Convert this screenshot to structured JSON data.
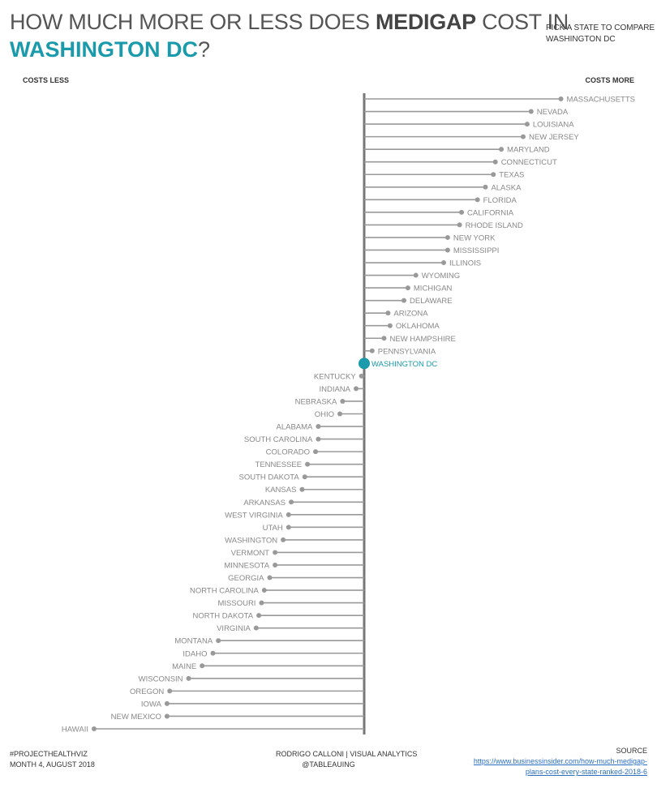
{
  "title": {
    "prefix": "HOW MUCH MORE OR LESS DOES ",
    "bold": "MEDIGAP",
    "suffix": " COST IN",
    "state": "WASHINGTON DC",
    "qmark": "?"
  },
  "picker": {
    "prompt": "PICK A STATE TO COMPARE",
    "selected": "WASHINGTON DC"
  },
  "axis": {
    "left_label": "COSTS LESS",
    "right_label": "COSTS MORE"
  },
  "colors": {
    "highlight": "#1a9aaa",
    "marks": "#999999",
    "baseline": "#777777",
    "labels": "#888888"
  },
  "chart_data": {
    "type": "lollipop",
    "reference": "WASHINGTON DC",
    "unit": "cost difference vs reference (relative)",
    "xlim": [
      -1,
      1
    ],
    "states": [
      {
        "name": "MASSACHUSETTS",
        "value": 0.99
      },
      {
        "name": "NEVADA",
        "value": 0.84
      },
      {
        "name": "LOUISIANA",
        "value": 0.82
      },
      {
        "name": "NEW JERSEY",
        "value": 0.8
      },
      {
        "name": "MARYLAND",
        "value": 0.69
      },
      {
        "name": "CONNECTICUT",
        "value": 0.66
      },
      {
        "name": "TEXAS",
        "value": 0.65
      },
      {
        "name": "ALASKA",
        "value": 0.61
      },
      {
        "name": "FLORIDA",
        "value": 0.57
      },
      {
        "name": "CALIFORNIA",
        "value": 0.49
      },
      {
        "name": "RHODE ISLAND",
        "value": 0.48
      },
      {
        "name": "NEW YORK",
        "value": 0.42
      },
      {
        "name": "MISSISSIPPI",
        "value": 0.42
      },
      {
        "name": "ILLINOIS",
        "value": 0.4
      },
      {
        "name": "WYOMING",
        "value": 0.26
      },
      {
        "name": "MICHIGAN",
        "value": 0.22
      },
      {
        "name": "DELAWARE",
        "value": 0.2
      },
      {
        "name": "ARIZONA",
        "value": 0.12
      },
      {
        "name": "OKLAHOMA",
        "value": 0.13
      },
      {
        "name": "NEW HAMPSHIRE",
        "value": 0.1
      },
      {
        "name": "PENNSYLVANIA",
        "value": 0.04
      },
      {
        "name": "WASHINGTON DC",
        "value": 0.0
      },
      {
        "name": "KENTUCKY",
        "value": -0.01
      },
      {
        "name": "INDIANA",
        "value": -0.03
      },
      {
        "name": "NEBRASKA",
        "value": -0.08
      },
      {
        "name": "OHIO",
        "value": -0.09
      },
      {
        "name": "ALABAMA",
        "value": -0.17
      },
      {
        "name": "SOUTH CAROLINA",
        "value": -0.17
      },
      {
        "name": "COLORADO",
        "value": -0.18
      },
      {
        "name": "TENNESSEE",
        "value": -0.21
      },
      {
        "name": "SOUTH DAKOTA",
        "value": -0.22
      },
      {
        "name": "KANSAS",
        "value": -0.23
      },
      {
        "name": "ARKANSAS",
        "value": -0.27
      },
      {
        "name": "WEST VIRGINIA",
        "value": -0.28
      },
      {
        "name": "UTAH",
        "value": -0.28
      },
      {
        "name": "WASHINGTON",
        "value": -0.3
      },
      {
        "name": "VERMONT",
        "value": -0.33
      },
      {
        "name": "MINNESOTA",
        "value": -0.33
      },
      {
        "name": "GEORGIA",
        "value": -0.35
      },
      {
        "name": "NORTH CAROLINA",
        "value": -0.37
      },
      {
        "name": "MISSOURI",
        "value": -0.38
      },
      {
        "name": "NORTH DAKOTA",
        "value": -0.39
      },
      {
        "name": "VIRGINIA",
        "value": -0.4
      },
      {
        "name": "MONTANA",
        "value": -0.54
      },
      {
        "name": "IDAHO",
        "value": -0.56
      },
      {
        "name": "MAINE",
        "value": -0.6
      },
      {
        "name": "WISCONSIN",
        "value": -0.65
      },
      {
        "name": "OREGON",
        "value": -0.72
      },
      {
        "name": "IOWA",
        "value": -0.73
      },
      {
        "name": "NEW MEXICO",
        "value": -0.73
      },
      {
        "name": "HAWAII",
        "value": -1.0
      }
    ]
  },
  "footer": {
    "left_line1": "#PROJECTHEALTHVIZ",
    "left_line2": "MONTH 4, AUGUST 2018",
    "mid_line1": "RODRIGO CALLONI | VISUAL ANALYTICS",
    "mid_line2": "@TABLEAUING",
    "source_label": "SOURCE",
    "source_url_line1": "https://www.businessinsider.com/how-much-medigap-",
    "source_url_line2": "plans-cost-every-state-ranked-2018-6"
  }
}
